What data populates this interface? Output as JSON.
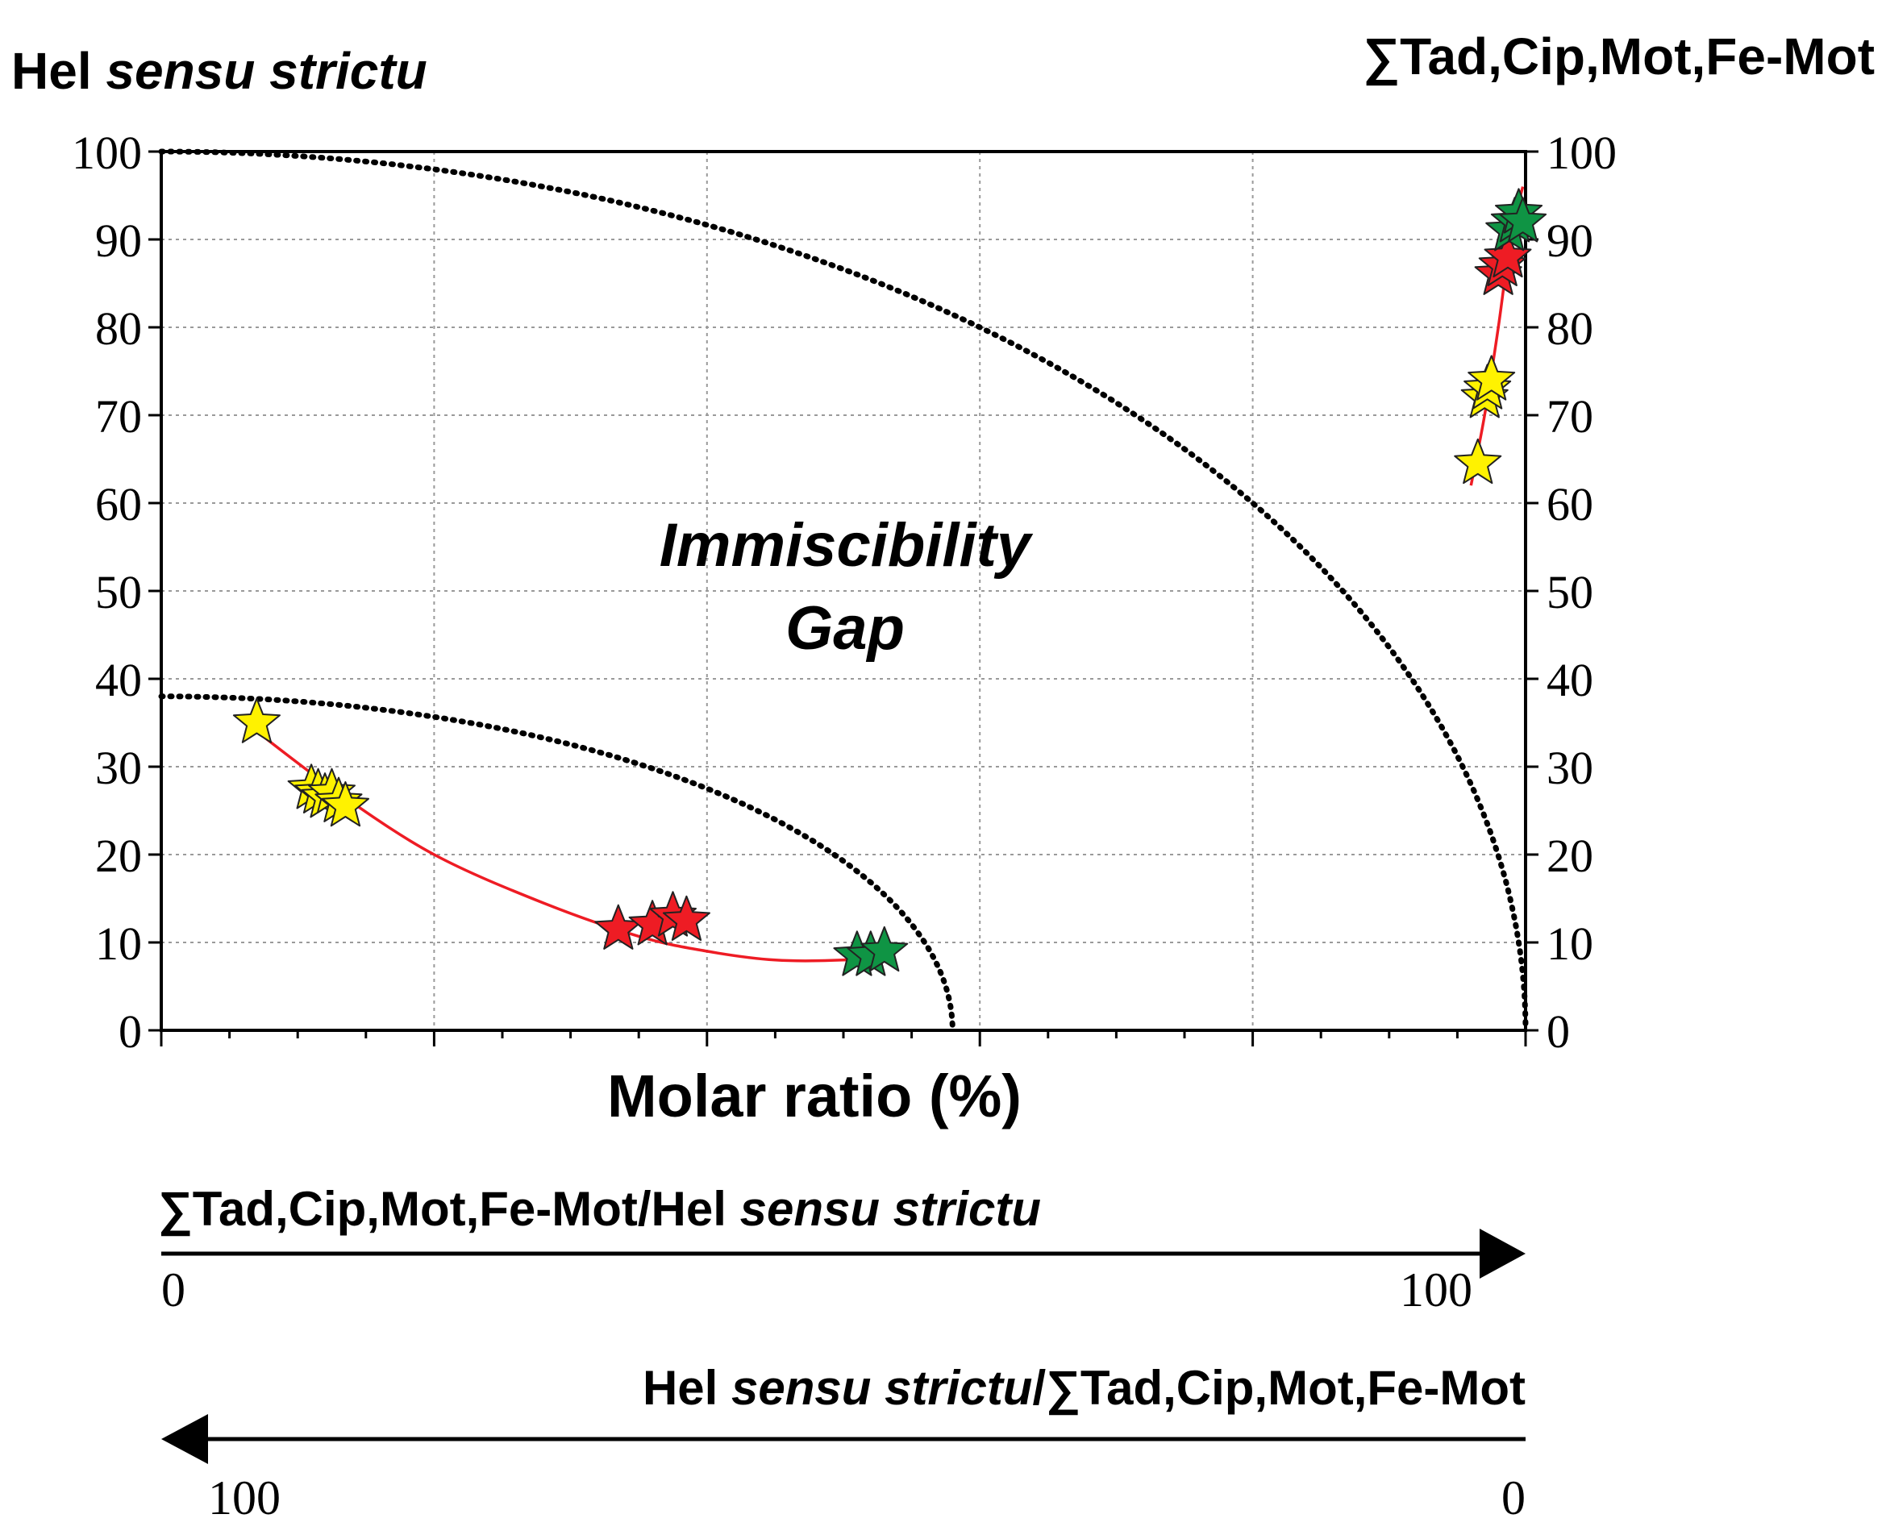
{
  "chart_data": {
    "type": "scatter",
    "title_left": {
      "main": "Hel ",
      "italic": "sensu strictu"
    },
    "title_right": "∑Tad,Cip,Mot,Fe-Mot",
    "xlabel": "Molar ratio (%)",
    "xlim": [
      0,
      100
    ],
    "ylim": [
      0,
      100
    ],
    "y_ticks": [
      "0",
      "10",
      "20",
      "30",
      "40",
      "50",
      "60",
      "70",
      "80",
      "90",
      "100"
    ],
    "y_tick_values": [
      0,
      10,
      20,
      30,
      40,
      50,
      60,
      70,
      80,
      90,
      100
    ],
    "x_major_ticks": [
      0,
      20,
      40,
      60,
      80,
      100
    ],
    "x_minor_step": 5,
    "grid": true,
    "annotation": {
      "line1": "Immiscibility",
      "line2": "Gap"
    },
    "series": [
      {
        "name": "yellow",
        "color": "#fff200",
        "points": [
          [
            7,
            35
          ],
          [
            11,
            27.5
          ],
          [
            11.5,
            27
          ],
          [
            12,
            26.5
          ],
          [
            12.5,
            27
          ],
          [
            13,
            26
          ],
          [
            13.5,
            25.5
          ],
          [
            96.5,
            64.5
          ],
          [
            97,
            72
          ],
          [
            97.2,
            73
          ],
          [
            97.5,
            74
          ]
        ]
      },
      {
        "name": "red",
        "color": "#ee1c24",
        "points": [
          [
            33.5,
            11.5
          ],
          [
            36,
            12
          ],
          [
            37.5,
            13
          ],
          [
            38.5,
            12.5
          ],
          [
            98,
            86
          ],
          [
            98.3,
            87
          ],
          [
            98.7,
            88
          ]
        ]
      },
      {
        "name": "green",
        "color": "#0f9444",
        "points": [
          [
            51,
            8.5
          ],
          [
            52,
            8.5
          ],
          [
            53,
            9
          ],
          [
            98.8,
            91
          ],
          [
            99.2,
            92
          ],
          [
            99.5,
            93
          ],
          [
            99.8,
            92
          ]
        ]
      }
    ],
    "trend_curves": [
      {
        "color": "#ee1c24",
        "points": [
          [
            7,
            34
          ],
          [
            13,
            27
          ],
          [
            20,
            20
          ],
          [
            28,
            14.5
          ],
          [
            35,
            10.7
          ],
          [
            40,
            9
          ],
          [
            45,
            8
          ],
          [
            50,
            8
          ],
          [
            53,
            8.5
          ]
        ]
      },
      {
        "color": "#ee1c24",
        "points": [
          [
            96,
            62
          ],
          [
            97,
            70
          ],
          [
            98,
            80
          ],
          [
            98.7,
            88
          ],
          [
            99.3,
            93
          ],
          [
            99.8,
            96
          ]
        ]
      }
    ],
    "gap_curves": [
      {
        "style": "dotted",
        "center_x": 0,
        "radius_x": 58,
        "radius_y": 38
      },
      {
        "style": "dotted",
        "center_x": 0,
        "radius_x": 100,
        "radius_y": 100
      }
    ],
    "arrow1": {
      "label_main": "∑Tad,Cip,Mot,Fe-Mot/Hel ",
      "label_italic": "sensu strictu",
      "start": "0",
      "end": "100",
      "direction": "right"
    },
    "arrow2": {
      "label_main": "Hel ",
      "label_italic": "sensu strictu",
      "label_tail": "/∑Tad,Cip,Mot,Fe-Mot",
      "start": "100",
      "end": "0",
      "direction": "left"
    }
  },
  "colors": {
    "axis": "#000000",
    "grid": "#9a9a9a",
    "trend": "#ee1c24"
  }
}
